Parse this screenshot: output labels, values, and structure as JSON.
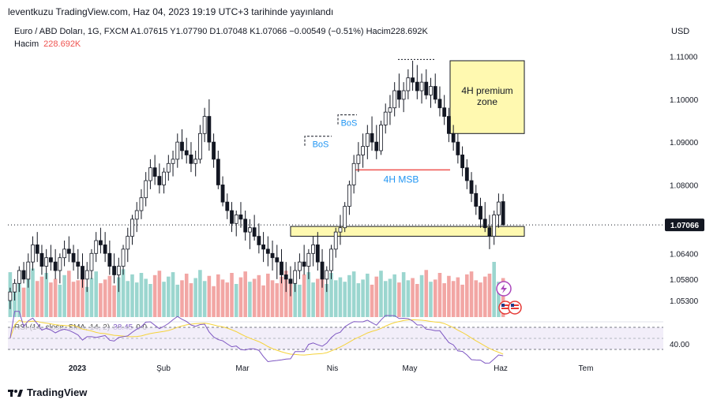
{
  "header": {
    "text": "leventkuzu TradingView.com, Haz 04, 2023 19:19 UTC+3 tarihinde yayınlandı"
  },
  "legend": {
    "line1": "Euro / ABD Doları, 1G, FXCM  A1.07615  Y1.07790  D1.07048  K1.07066  −0.00549 (−0.51%)  Hacim228.692K",
    "volume_label": "Hacim",
    "volume_value": "228.692K"
  },
  "currency": "USD",
  "footer": {
    "brand": "TradingView"
  },
  "rsi": {
    "label": "RSI (14, close, SMA, 14, 2)",
    "value": "38.45",
    "extra": "0  0"
  },
  "colors": {
    "up": "#26a69a",
    "down": "#ef5350",
    "vol_up": "#9bd6cf",
    "vol_down": "#f2a6a4",
    "rsi": "#7e57c2",
    "rsi_ma": "#f5d33b",
    "zone_fill": "#fff9b0",
    "current_price_bg": "#131722"
  },
  "chart_data": {
    "type": "candlestick",
    "title": "Euro / ABD Doları, 1G, FXCM",
    "ylabel": "USD",
    "ylim": [
      1.0495,
      1.1125
    ],
    "yticks": [
      "1.11000",
      "1.10000",
      "1.09000",
      "1.08000",
      "1.06400",
      "1.05800",
      "1.05300"
    ],
    "current_price": "1.07066",
    "xticks": [
      "2023",
      "Şub",
      "Mar",
      "Nis",
      "May",
      "Haz",
      "Tem"
    ],
    "annotations": [
      {
        "text": "4H premium zone",
        "type": "zone",
        "top": 1.109,
        "bottom": 1.092
      },
      {
        "text": "4H MSB",
        "type": "line",
        "y": 1.0835
      },
      {
        "text": "BoS",
        "type": "label",
        "y": 1.096
      },
      {
        "text": "BoS",
        "type": "label",
        "y": 1.091
      },
      {
        "text": "",
        "type": "zone",
        "top": 1.0703,
        "bottom": 1.068
      }
    ],
    "ohlc": [
      [
        1.053,
        1.056,
        1.051,
        1.055
      ],
      [
        1.055,
        1.058,
        1.053,
        1.057
      ],
      [
        1.057,
        1.061,
        1.055,
        1.06
      ],
      [
        1.06,
        1.062,
        1.057,
        1.058
      ],
      [
        1.058,
        1.064,
        1.056,
        1.062
      ],
      [
        1.062,
        1.068,
        1.06,
        1.066
      ],
      [
        1.066,
        1.069,
        1.062,
        1.064
      ],
      [
        1.064,
        1.066,
        1.059,
        1.061
      ],
      [
        1.061,
        1.065,
        1.058,
        1.063
      ],
      [
        1.063,
        1.066,
        1.06,
        1.062
      ],
      [
        1.062,
        1.065,
        1.058,
        1.06
      ],
      [
        1.06,
        1.064,
        1.057,
        1.063
      ],
      [
        1.063,
        1.067,
        1.061,
        1.065
      ],
      [
        1.065,
        1.068,
        1.062,
        1.064
      ],
      [
        1.064,
        1.066,
        1.06,
        1.062
      ],
      [
        1.062,
        1.065,
        1.058,
        1.061
      ],
      [
        1.061,
        1.064,
        1.056,
        1.058
      ],
      [
        1.058,
        1.062,
        1.055,
        1.06
      ],
      [
        1.06,
        1.065,
        1.058,
        1.064
      ],
      [
        1.064,
        1.069,
        1.062,
        1.067
      ],
      [
        1.067,
        1.07,
        1.064,
        1.066
      ],
      [
        1.066,
        1.069,
        1.062,
        1.064
      ],
      [
        1.064,
        1.067,
        1.059,
        1.061
      ],
      [
        1.061,
        1.064,
        1.057,
        1.059
      ],
      [
        1.059,
        1.063,
        1.055,
        1.061
      ],
      [
        1.061,
        1.066,
        1.059,
        1.065
      ],
      [
        1.065,
        1.07,
        1.062,
        1.068
      ],
      [
        1.068,
        1.073,
        1.066,
        1.072
      ],
      [
        1.072,
        1.076,
        1.069,
        1.074
      ],
      [
        1.074,
        1.079,
        1.072,
        1.077
      ],
      [
        1.077,
        1.083,
        1.075,
        1.081
      ],
      [
        1.081,
        1.086,
        1.079,
        1.084
      ],
      [
        1.084,
        1.087,
        1.08,
        1.082
      ],
      [
        1.082,
        1.085,
        1.078,
        1.08
      ],
      [
        1.08,
        1.084,
        1.078,
        1.083
      ],
      [
        1.083,
        1.087,
        1.081,
        1.085
      ],
      [
        1.085,
        1.088,
        1.082,
        1.086
      ],
      [
        1.086,
        1.092,
        1.084,
        1.09
      ],
      [
        1.09,
        1.093,
        1.086,
        1.088
      ],
      [
        1.088,
        1.091,
        1.085,
        1.087
      ],
      [
        1.087,
        1.09,
        1.083,
        1.085
      ],
      [
        1.085,
        1.088,
        1.082,
        1.086
      ],
      [
        1.086,
        1.094,
        1.085,
        1.092
      ],
      [
        1.092,
        1.098,
        1.09,
        1.096
      ],
      [
        1.096,
        1.1,
        1.088,
        1.09
      ],
      [
        1.09,
        1.092,
        1.084,
        1.086
      ],
      [
        1.086,
        1.088,
        1.079,
        1.08
      ],
      [
        1.08,
        1.082,
        1.075,
        1.076
      ],
      [
        1.076,
        1.078,
        1.072,
        1.074
      ],
      [
        1.074,
        1.076,
        1.069,
        1.071
      ],
      [
        1.071,
        1.074,
        1.068,
        1.073
      ],
      [
        1.073,
        1.076,
        1.07,
        1.072
      ],
      [
        1.072,
        1.074,
        1.067,
        1.069
      ],
      [
        1.069,
        1.072,
        1.065,
        1.07
      ],
      [
        1.07,
        1.073,
        1.067,
        1.068
      ],
      [
        1.068,
        1.071,
        1.064,
        1.066
      ],
      [
        1.066,
        1.069,
        1.062,
        1.065
      ],
      [
        1.065,
        1.068,
        1.061,
        1.064
      ],
      [
        1.064,
        1.067,
        1.06,
        1.063
      ],
      [
        1.063,
        1.066,
        1.058,
        1.062
      ],
      [
        1.062,
        1.065,
        1.057,
        1.059
      ],
      [
        1.059,
        1.062,
        1.055,
        1.058
      ],
      [
        1.058,
        1.061,
        1.054,
        1.057
      ],
      [
        1.057,
        1.062,
        1.055,
        1.06
      ],
      [
        1.06,
        1.064,
        1.058,
        1.062
      ],
      [
        1.062,
        1.066,
        1.059,
        1.061
      ],
      [
        1.061,
        1.065,
        1.058,
        1.064
      ],
      [
        1.064,
        1.068,
        1.061,
        1.066
      ],
      [
        1.066,
        1.069,
        1.06,
        1.062
      ],
      [
        1.062,
        1.065,
        1.056,
        1.058
      ],
      [
        1.058,
        1.061,
        1.055,
        1.06
      ],
      [
        1.06,
        1.066,
        1.058,
        1.065
      ],
      [
        1.065,
        1.07,
        1.063,
        1.069
      ],
      [
        1.069,
        1.073,
        1.066,
        1.07
      ],
      [
        1.07,
        1.076,
        1.069,
        1.075
      ],
      [
        1.075,
        1.081,
        1.073,
        1.08
      ],
      [
        1.08,
        1.087,
        1.078,
        1.085
      ],
      [
        1.085,
        1.09,
        1.083,
        1.087
      ],
      [
        1.087,
        1.092,
        1.084,
        1.089
      ],
      [
        1.089,
        1.094,
        1.086,
        1.092
      ],
      [
        1.092,
        1.096,
        1.088,
        1.09
      ],
      [
        1.09,
        1.094,
        1.086,
        1.088
      ],
      [
        1.088,
        1.095,
        1.087,
        1.094
      ],
      [
        1.094,
        1.099,
        1.092,
        1.097
      ],
      [
        1.097,
        1.101,
        1.094,
        1.098
      ],
      [
        1.098,
        1.104,
        1.096,
        1.102
      ],
      [
        1.102,
        1.106,
        1.098,
        1.1
      ],
      [
        1.1,
        1.104,
        1.097,
        1.102
      ],
      [
        1.102,
        1.107,
        1.1,
        1.105
      ],
      [
        1.105,
        1.109,
        1.102,
        1.104
      ],
      [
        1.104,
        1.108,
        1.1,
        1.102
      ],
      [
        1.102,
        1.106,
        1.099,
        1.104
      ],
      [
        1.104,
        1.107,
        1.1,
        1.101
      ],
      [
        1.101,
        1.105,
        1.098,
        1.103
      ],
      [
        1.103,
        1.106,
        1.099,
        1.1
      ],
      [
        1.1,
        1.103,
        1.096,
        1.098
      ],
      [
        1.098,
        1.101,
        1.094,
        1.096
      ],
      [
        1.096,
        1.098,
        1.09,
        1.092
      ],
      [
        1.092,
        1.094,
        1.088,
        1.09
      ],
      [
        1.09,
        1.092,
        1.085,
        1.087
      ],
      [
        1.087,
        1.089,
        1.082,
        1.084
      ],
      [
        1.084,
        1.086,
        1.079,
        1.081
      ],
      [
        1.081,
        1.083,
        1.076,
        1.078
      ],
      [
        1.078,
        1.08,
        1.073,
        1.075
      ],
      [
        1.075,
        1.077,
        1.07,
        1.072
      ],
      [
        1.072,
        1.076,
        1.069,
        1.07
      ],
      [
        1.07,
        1.073,
        1.065,
        1.068
      ],
      [
        1.068,
        1.074,
        1.066,
        1.073
      ],
      [
        1.073,
        1.078,
        1.07,
        1.076
      ],
      [
        1.0761,
        1.0779,
        1.0705,
        1.0707
      ]
    ],
    "volume": [
      61,
      45,
      52,
      40,
      58,
      66,
      49,
      55,
      60,
      47,
      52,
      44,
      57,
      63,
      48,
      50,
      59,
      41,
      53,
      62,
      46,
      51,
      56,
      43,
      54,
      65,
      49,
      58,
      47,
      60,
      52,
      45,
      57,
      63,
      48,
      55,
      61,
      44,
      50,
      59,
      46,
      53,
      64,
      49,
      56,
      42,
      58,
      51,
      47,
      60,
      45,
      54,
      62,
      48,
      52,
      57,
      43,
      59,
      50,
      46,
      55,
      63,
      49,
      53,
      44,
      58,
      61,
      47,
      52,
      56,
      45,
      60,
      50,
      54,
      48,
      57,
      62,
      46,
      51,
      59,
      44,
      55,
      63,
      49,
      52,
      58,
      47,
      61,
      50,
      53,
      45,
      57,
      64,
      48,
      51,
      60,
      46,
      56,
      49,
      54,
      44,
      58,
      62,
      50,
      47,
      55,
      59,
      75,
      48,
      53
    ],
    "rsi_ylim": [
      20,
      80
    ],
    "rsi_ytick": "40.00"
  }
}
